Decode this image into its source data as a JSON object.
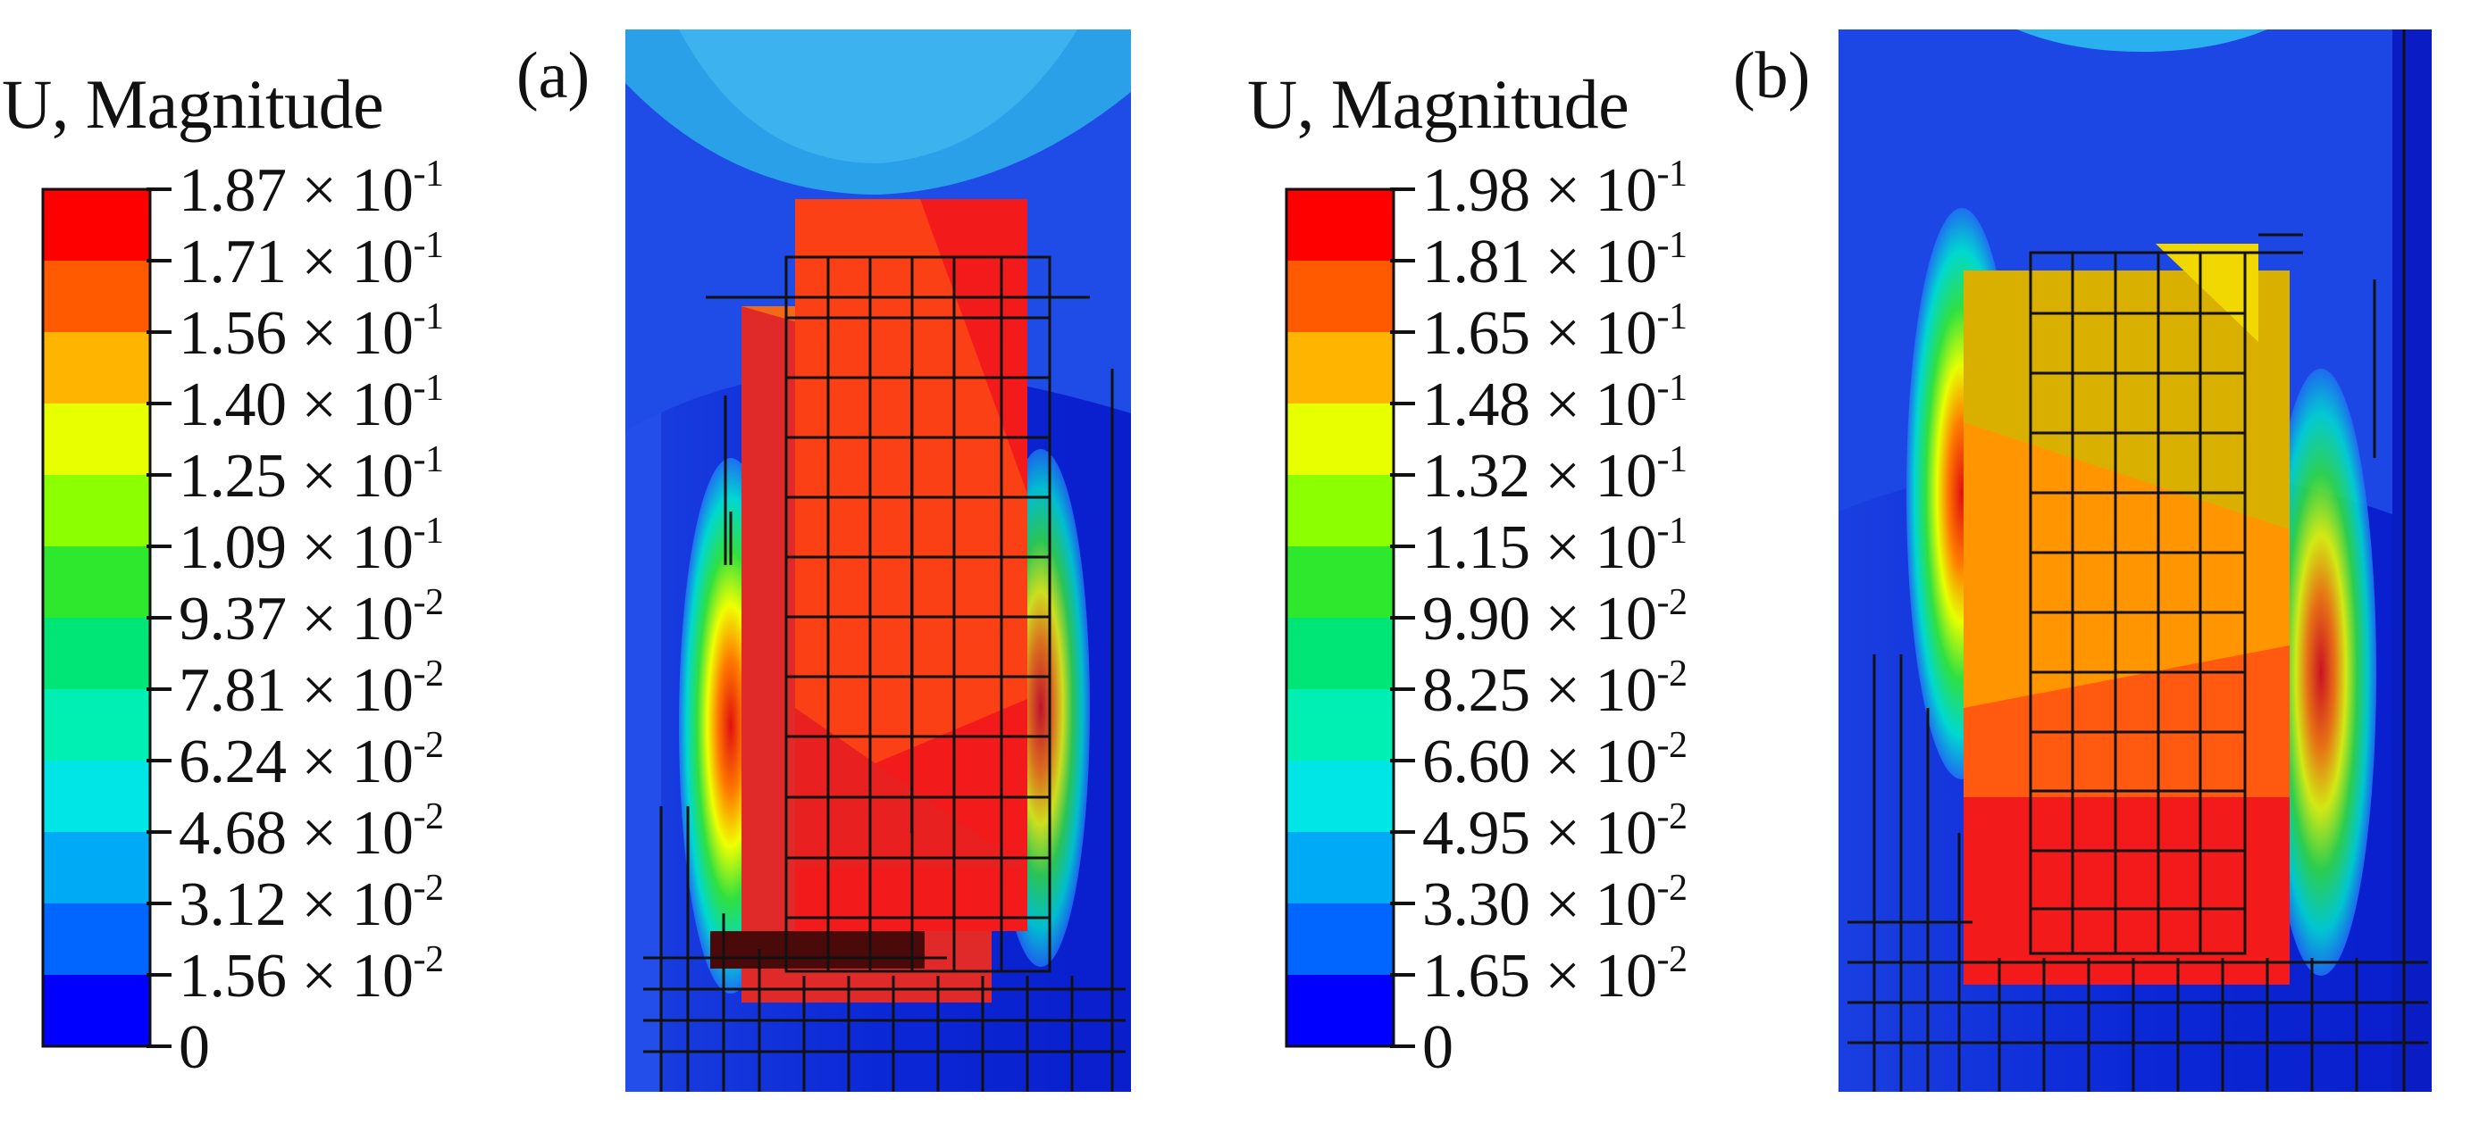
{
  "panels": [
    {
      "label": "(a)",
      "legend": {
        "title": "U, Magnitude",
        "levels": [
          {
            "mantissa": "1.87",
            "times": "×",
            "base": "10",
            "exponent": "-1"
          },
          {
            "mantissa": "1.71",
            "times": "×",
            "base": "10",
            "exponent": "-1"
          },
          {
            "mantissa": "1.56",
            "times": "×",
            "base": "10",
            "exponent": "-1"
          },
          {
            "mantissa": "1.40",
            "times": "×",
            "base": "10",
            "exponent": "-1"
          },
          {
            "mantissa": "1.25",
            "times": "×",
            "base": "10",
            "exponent": "-1"
          },
          {
            "mantissa": "1.09",
            "times": "×",
            "base": "10",
            "exponent": "-1"
          },
          {
            "mantissa": "9.37",
            "times": "×",
            "base": "10",
            "exponent": "-2"
          },
          {
            "mantissa": "7.81",
            "times": "×",
            "base": "10",
            "exponent": "-2"
          },
          {
            "mantissa": "6.24",
            "times": "×",
            "base": "10",
            "exponent": "-2"
          },
          {
            "mantissa": "4.68",
            "times": "×",
            "base": "10",
            "exponent": "-2"
          },
          {
            "mantissa": "3.12",
            "times": "×",
            "base": "10",
            "exponent": "-2"
          },
          {
            "mantissa": "1.56",
            "times": "×",
            "base": "10",
            "exponent": "-2"
          },
          {
            "mantissa": "0",
            "times": "",
            "base": "",
            "exponent": ""
          }
        ]
      }
    },
    {
      "label": "(b)",
      "legend": {
        "title": "U, Magnitude",
        "levels": [
          {
            "mantissa": "1.98",
            "times": "×",
            "base": "10",
            "exponent": "-1"
          },
          {
            "mantissa": "1.81",
            "times": "×",
            "base": "10",
            "exponent": "-1"
          },
          {
            "mantissa": "1.65",
            "times": "×",
            "base": "10",
            "exponent": "-1"
          },
          {
            "mantissa": "1.48",
            "times": "×",
            "base": "10",
            "exponent": "-1"
          },
          {
            "mantissa": "1.32",
            "times": "×",
            "base": "10",
            "exponent": "-1"
          },
          {
            "mantissa": "1.15",
            "times": "×",
            "base": "10",
            "exponent": "-1"
          },
          {
            "mantissa": "9.90",
            "times": "×",
            "base": "10",
            "exponent": "-2"
          },
          {
            "mantissa": "8.25",
            "times": "×",
            "base": "10",
            "exponent": "-2"
          },
          {
            "mantissa": "6.60",
            "times": "×",
            "base": "10",
            "exponent": "-2"
          },
          {
            "mantissa": "4.95",
            "times": "×",
            "base": "10",
            "exponent": "-2"
          },
          {
            "mantissa": "3.30",
            "times": "×",
            "base": "10",
            "exponent": "-2"
          },
          {
            "mantissa": "1.65",
            "times": "×",
            "base": "10",
            "exponent": "-2"
          },
          {
            "mantissa": "0",
            "times": "",
            "base": "",
            "exponent": ""
          }
        ]
      }
    }
  ],
  "colors": {
    "band_colors_top_to_bottom": [
      "#ff0000",
      "#ff5a00",
      "#ffb400",
      "#e8ff00",
      "#8cff00",
      "#2ee82e",
      "#00e676",
      "#00f0b4",
      "#00e6e6",
      "#00aaf5",
      "#0066ff",
      "#0000ff"
    ],
    "background_blue": "#0b28d6",
    "mesh_line": "#111111"
  }
}
